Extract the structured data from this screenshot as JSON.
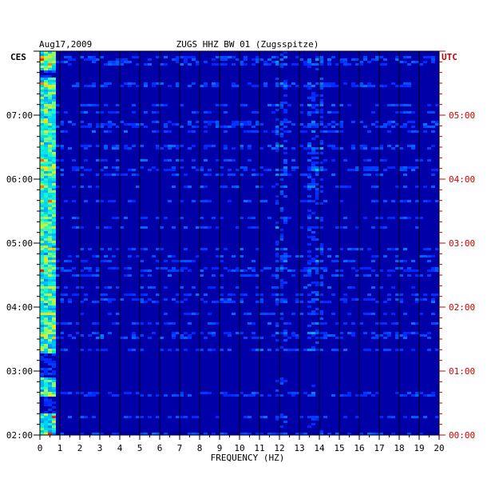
{
  "header": {
    "date": "Aug17,2009",
    "title": "ZUGS HHZ BW 01 (Zugsspitze)"
  },
  "left_axis_label": "CES",
  "right_axis_label": "UTC",
  "colors": {
    "background": "#0000a8",
    "grid": "#000000",
    "utc": "#cc0000",
    "text": "#000000"
  },
  "chart_data": {
    "type": "heatmap",
    "title": "ZUGS HHZ BW 01 (Zugsspitze)",
    "xlabel": "FREQUENCY (HZ)",
    "ylabel": "",
    "xlim": [
      0,
      20
    ],
    "x_ticks": [
      "0",
      "1",
      "2",
      "3",
      "4",
      "5",
      "6",
      "7",
      "8",
      "9",
      "10",
      "11",
      "12",
      "13",
      "14",
      "15",
      "16",
      "17",
      "18",
      "19",
      "20"
    ],
    "y_ticks_left": [
      "07:00",
      "06:00",
      "05:00",
      "04:00",
      "03:00",
      "02:00"
    ],
    "y_ticks_right": [
      "05:00",
      "04:00",
      "03:00",
      "02:00",
      "01:00",
      "00:00"
    ],
    "y_tick_hours_left": [
      7,
      6,
      5,
      4,
      3,
      2
    ],
    "time_range_hours_left": [
      2,
      8
    ],
    "description": "Spectrogram of vertical seismometer channel; intensity concentrated below 1 Hz and near 12 Hz and 13.5-14 Hz, stronger energy around 02:30-03:00 and 07:10-07:40 CES."
  }
}
